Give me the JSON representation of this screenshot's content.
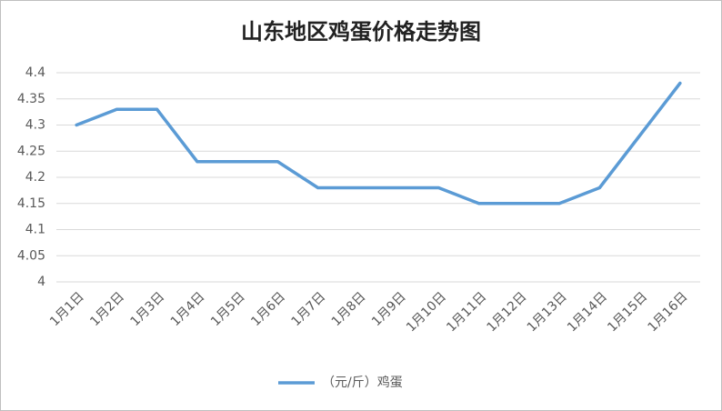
{
  "chart_data": {
    "type": "line",
    "title": "山东地区鸡蛋价格走势图",
    "categories": [
      "1月1日",
      "1月2日",
      "1月3日",
      "1月4日",
      "1月5日",
      "1月6日",
      "1月7日",
      "1月8日",
      "1月9日",
      "1月10日",
      "1月11日",
      "1月12日",
      "1月13日",
      "1月14日",
      "1月15日",
      "1月16日"
    ],
    "series": [
      {
        "name": "（元/斤）鸡蛋",
        "color": "#5b9bd5",
        "values": [
          4.3,
          4.33,
          4.33,
          4.23,
          4.23,
          4.23,
          4.18,
          4.18,
          4.18,
          4.18,
          4.15,
          4.15,
          4.15,
          4.18,
          4.28,
          4.38
        ]
      }
    ],
    "ylim": [
      4,
      4.4
    ],
    "yticks": [
      4,
      4.05,
      4.1,
      4.15,
      4.2,
      4.25,
      4.3,
      4.35,
      4.4
    ],
    "grid": true,
    "legend": "bottom"
  }
}
